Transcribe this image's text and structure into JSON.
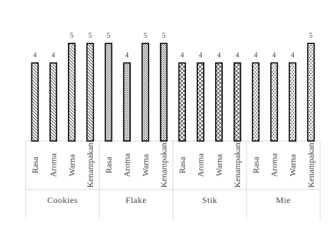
{
  "chart_data": {
    "type": "bar",
    "ylim": [
      0,
      6
    ],
    "groups": [
      {
        "name": "Cookies",
        "pattern": "diagonal",
        "bars": [
          {
            "category": "Rasa",
            "value": 4
          },
          {
            "category": "Aroma",
            "value": 4
          },
          {
            "category": "Warna",
            "value": 5
          },
          {
            "category": "Kenampakan",
            "value": 5
          }
        ]
      },
      {
        "name": "Flake",
        "pattern": "dots",
        "bars": [
          {
            "category": "Rasa",
            "value": 5
          },
          {
            "category": "Aroma",
            "value": 4
          },
          {
            "category": "Warna",
            "value": 5
          },
          {
            "category": "Kenampakan",
            "value": 5
          }
        ]
      },
      {
        "name": "Stik",
        "pattern": "crosshatch",
        "bars": [
          {
            "category": "Rasa",
            "value": 4
          },
          {
            "category": "Aroma",
            "value": 4
          },
          {
            "category": "Warna",
            "value": 4
          },
          {
            "category": "Kenampakan",
            "value": 4
          }
        ]
      },
      {
        "name": "Mie",
        "pattern": "sparse-dots",
        "bars": [
          {
            "category": "Rasa",
            "value": 4
          },
          {
            "category": "Aroma",
            "value": 4
          },
          {
            "category": "Warna",
            "value": 4
          },
          {
            "category": "Kenampakan",
            "value": 5
          }
        ]
      }
    ],
    "colors": {
      "bar_stroke": "#000000",
      "text": "#404040",
      "grid_line": "#d9d9d9",
      "frame": "#bfbfbf"
    }
  }
}
